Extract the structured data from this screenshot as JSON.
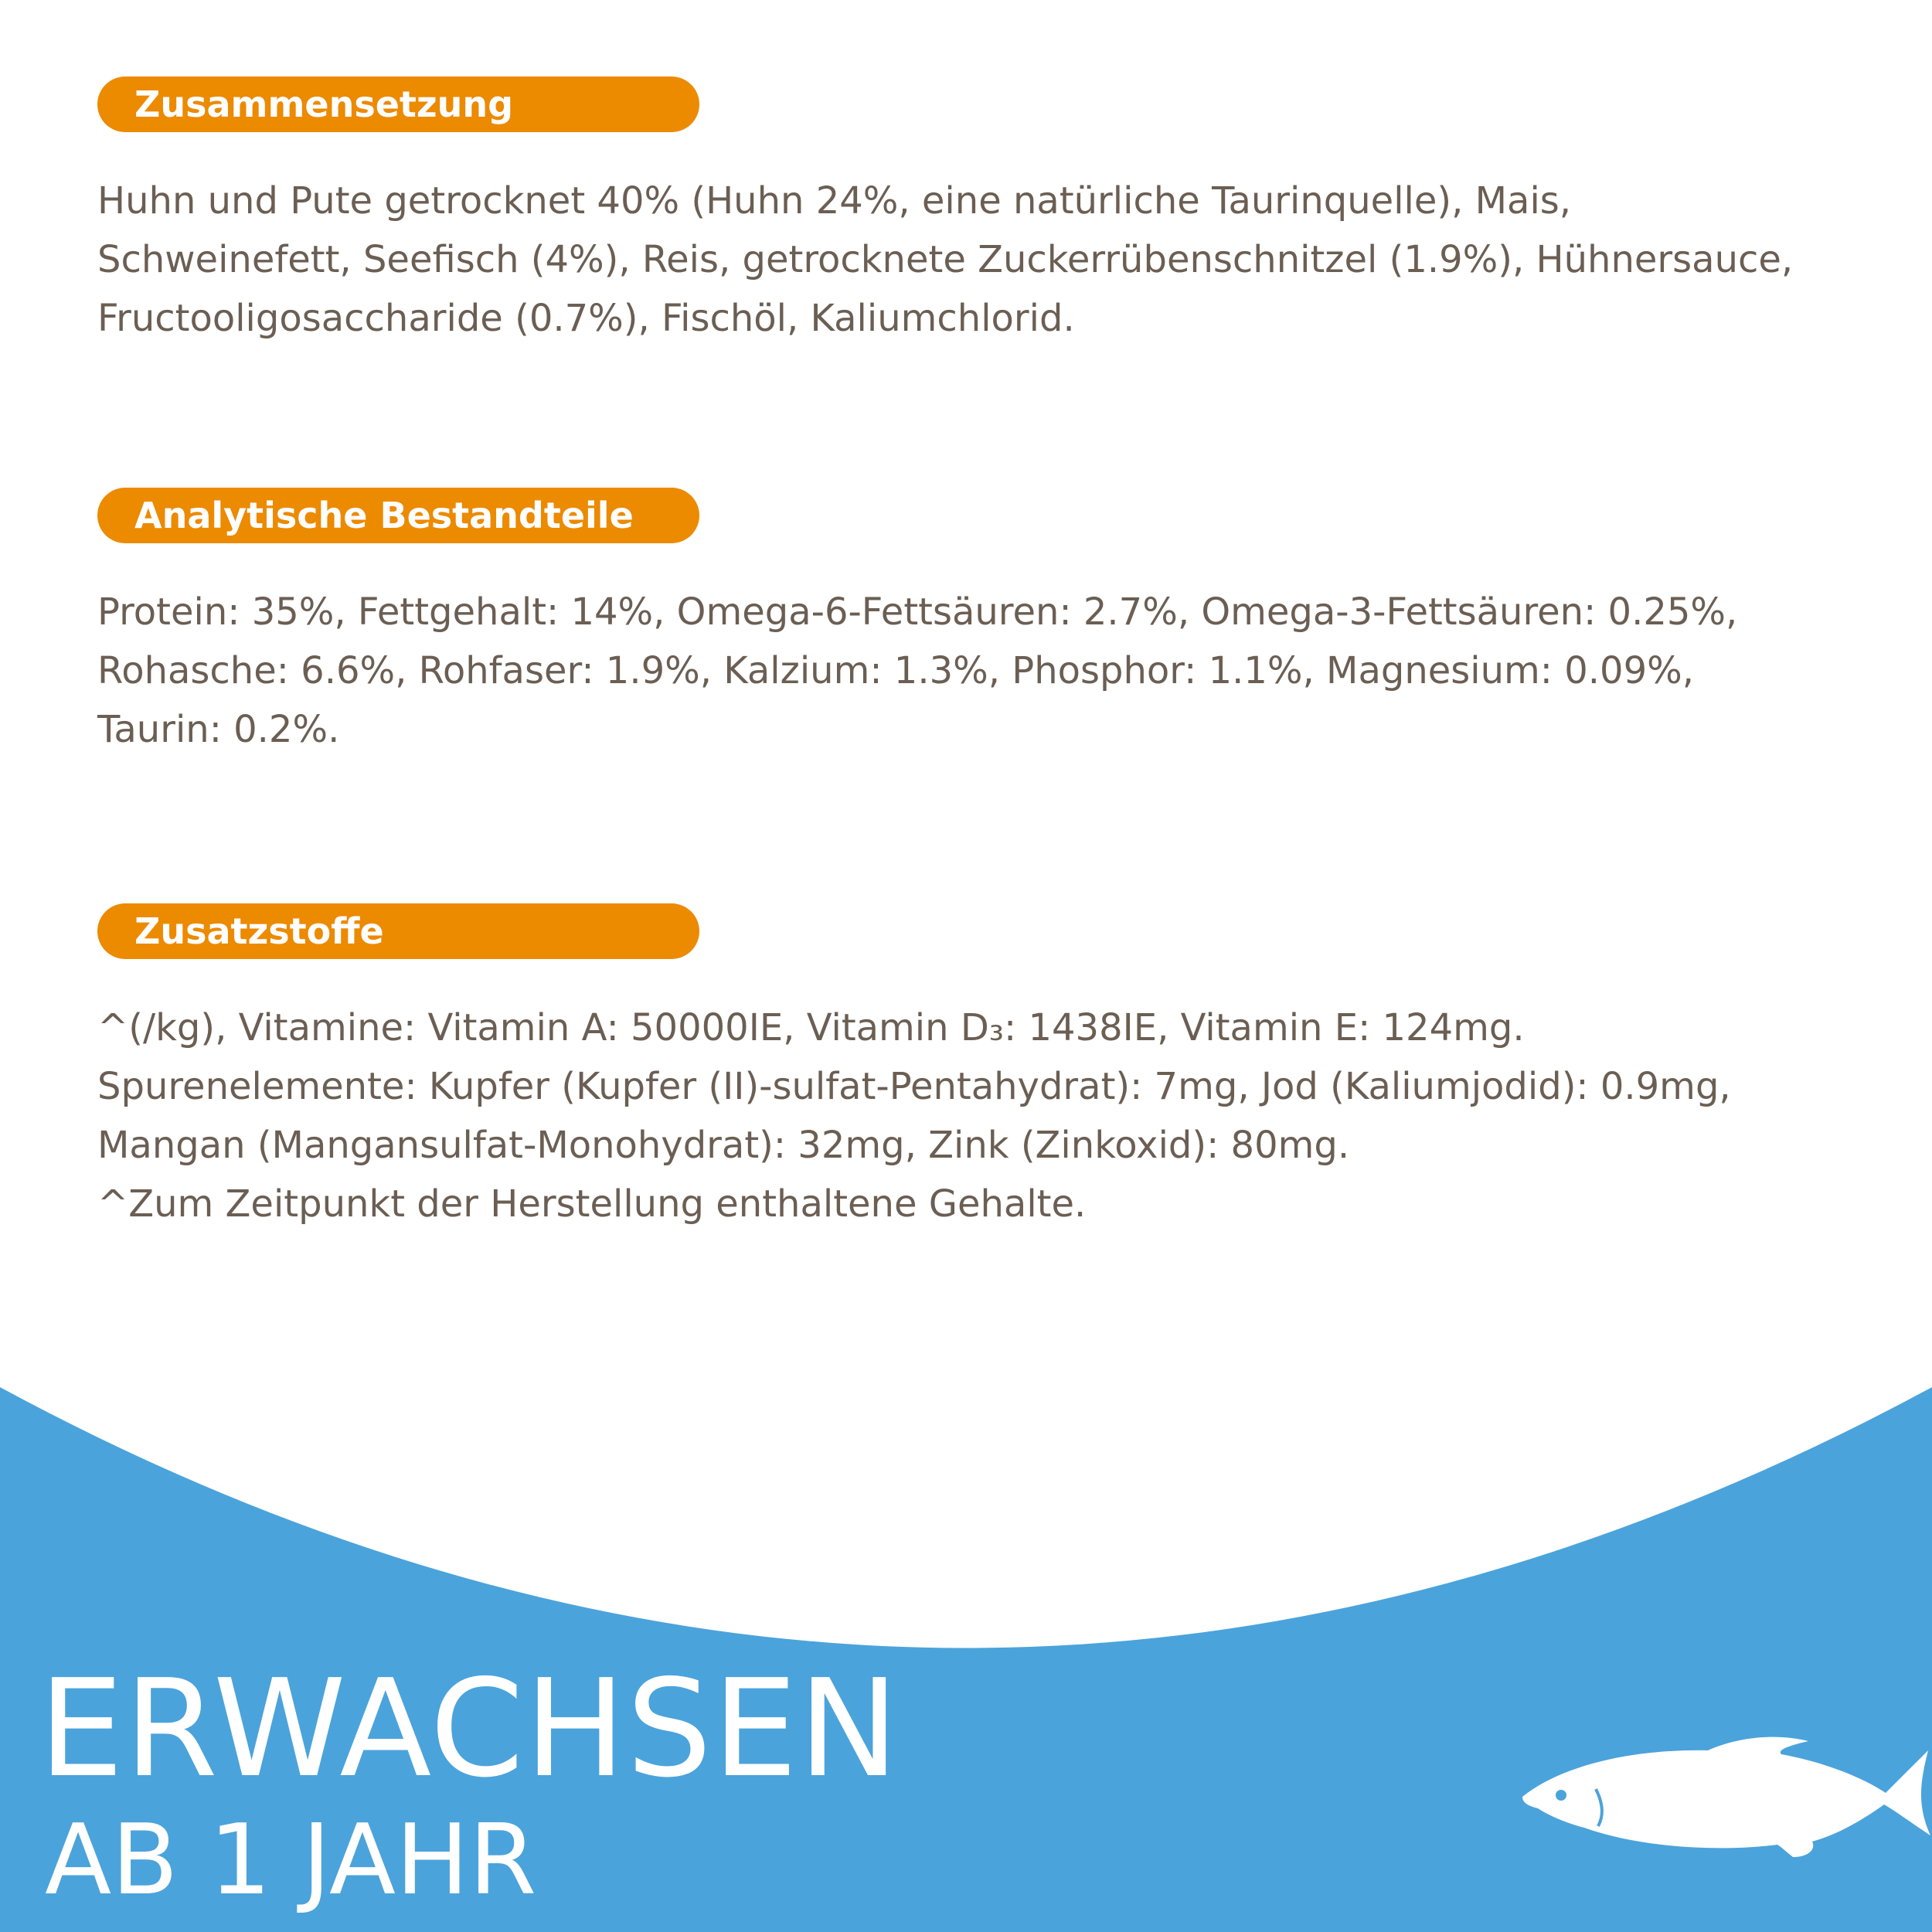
{
  "sections": [
    {
      "heading": "Zusammensetzung",
      "lines": [
        "Huhn und Pute getrocknet 40% (Huhn 24%, eine natürliche Taurinquelle), Mais,",
        "Schweinefett, Seefisch (4%), Reis, getrocknete Zuckerrübenschnitzel (1.9%), Hühnersauce,",
        "Fructooligosaccharide (0.7%), Fischöl, Kaliumchlorid."
      ]
    },
    {
      "heading": "Analytische Bestandteile",
      "lines": [
        "Protein: 35%, Fettgehalt: 14%, Omega-6-Fettsäuren: 2.7%, Omega-3-Fettsäuren: 0.25%,",
        "Rohasche: 6.6%, Rohfaser: 1.9%, Kalzium: 1.3%, Phosphor: 1.1%, Magnesium: 0.09%,",
        "Taurin: 0.2%."
      ]
    },
    {
      "heading": "Zusatzstoffe",
      "lines": [
        "^(/kg), Vitamine: Vitamin A: 50000IE, Vitamin D₃: 1438IE, Vitamin E: 124mg.",
        "Spurenelemente: Kupfer (Kupfer (II)-sulfat-Pentahydrat): 7mg, Jod (Kaliumjodid): 0.9mg,",
        "Mangan (Mangansulfat-Monohydrat): 32mg, Zink (Zinkoxid): 80mg.",
        "^Zum Zeitpunkt der Herstellung enthaltene Gehalte."
      ]
    }
  ],
  "footer": {
    "title": "ERWACHSEN",
    "subtitle": "AB 1 JAHR",
    "icon": "fish-icon"
  },
  "colors": {
    "accent": "#ec8a00",
    "text": "#6b5e53",
    "footer_blue": "#4ba3db",
    "white": "#ffffff"
  }
}
